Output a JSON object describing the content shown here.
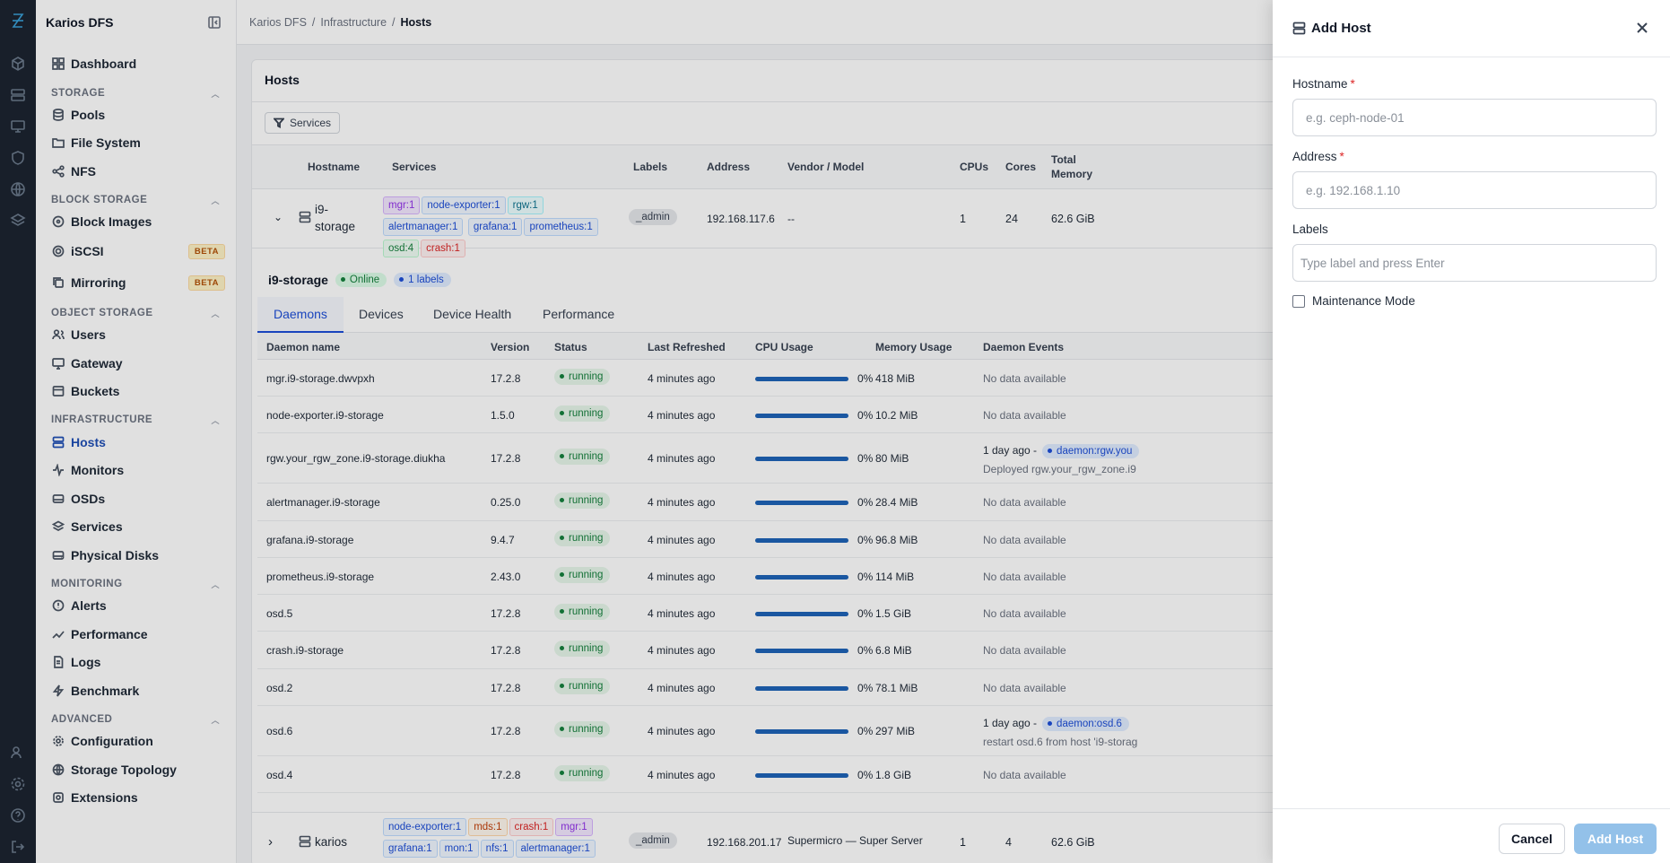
{
  "app": {
    "title": "Kairos DFS"
  },
  "breadcrumb": [
    "Karios DFS",
    "Infrastructure",
    "Hosts"
  ],
  "sidebar": {
    "title": "Karios DFS",
    "dashboard": "Dashboard",
    "sections": {
      "storage": "STORAGE",
      "block": "BLOCK STORAGE",
      "object": "OBJECT STORAGE",
      "infra": "INFRASTRUCTURE",
      "monitoring": "MONITORING",
      "advanced": "ADVANCED"
    },
    "items": {
      "pools": "Pools",
      "filesystem": "File System",
      "nfs": "NFS",
      "blockimages": "Block Images",
      "iscsi": "iSCSI",
      "mirroring": "Mirroring",
      "users": "Users",
      "gateway": "Gateway",
      "buckets": "Buckets",
      "hosts": "Hosts",
      "monitors": "Monitors",
      "osds": "OSDs",
      "services": "Services",
      "physicaldisks": "Physical Disks",
      "alerts": "Alerts",
      "performance": "Performance",
      "logs": "Logs",
      "benchmark": "Benchmark",
      "configuration": "Configuration",
      "topology": "Storage Topology",
      "extensions": "Extensions"
    },
    "beta": "BETA"
  },
  "hosts": {
    "title": "Hosts",
    "filter": "Services",
    "columns": {
      "hostname": "Hostname",
      "services": "Services",
      "labels": "Labels",
      "address": "Address",
      "vendor": "Vendor / Model",
      "cpus": "CPUs",
      "cores": "Cores",
      "memory": "Total Memory"
    },
    "rows": [
      {
        "hostname": "i9-storage",
        "services": [
          "mgr:1",
          "node-exporter:1",
          "rgw:1",
          "alertmanager:1",
          "grafana:1",
          "prometheus:1",
          "osd:4",
          "crash:1"
        ],
        "label": "_admin",
        "address": "192.168.117.6",
        "vendor": "--",
        "cpus": "1",
        "cores": "24",
        "memory": "62.6 GiB"
      },
      {
        "hostname": "karios",
        "services": [
          "node-exporter:1",
          "mds:1",
          "crash:1",
          "mgr:1",
          "grafana:1",
          "mon:1",
          "nfs:1",
          "alertmanager:1"
        ],
        "label": "_admin",
        "address": "192.168.201.17",
        "vendor": "Supermicro — Super Server",
        "cpus": "1",
        "cores": "4",
        "memory": "62.6 GiB"
      }
    ]
  },
  "detail": {
    "name": "i9-storage",
    "status": "Online",
    "labels": "1 labels",
    "tabs": [
      "Daemons",
      "Devices",
      "Device Health",
      "Performance"
    ],
    "columns": {
      "name": "Daemon name",
      "version": "Version",
      "status": "Status",
      "refreshed": "Last Refreshed",
      "cpu": "CPU Usage",
      "memory": "Memory Usage",
      "events": "Daemon Events"
    },
    "daemons": [
      {
        "name": "mgr.i9-storage.dwvpxh",
        "version": "17.2.8",
        "status": "running",
        "refreshed": "4 minutes ago",
        "cpu": "0%",
        "memory": "418 MiB",
        "events": "No data available"
      },
      {
        "name": "node-exporter.i9-storage",
        "version": "1.5.0",
        "status": "running",
        "refreshed": "4 minutes ago",
        "cpu": "0%",
        "memory": "10.2 MiB",
        "events": "No data available"
      },
      {
        "name": "rgw.your_rgw_zone.i9-storage.diukha",
        "version": "17.2.8",
        "status": "running",
        "refreshed": "4 minutes ago",
        "cpu": "0%",
        "memory": "80 MiB",
        "events": "1 day ago -",
        "event_chip": "daemon:rgw.you",
        "event_detail": "Deployed rgw.your_rgw_zone.i9"
      },
      {
        "name": "alertmanager.i9-storage",
        "version": "0.25.0",
        "status": "running",
        "refreshed": "4 minutes ago",
        "cpu": "0%",
        "memory": "28.4 MiB",
        "events": "No data available"
      },
      {
        "name": "grafana.i9-storage",
        "version": "9.4.7",
        "status": "running",
        "refreshed": "4 minutes ago",
        "cpu": "0%",
        "memory": "96.8 MiB",
        "events": "No data available"
      },
      {
        "name": "prometheus.i9-storage",
        "version": "2.43.0",
        "status": "running",
        "refreshed": "4 minutes ago",
        "cpu": "0%",
        "memory": "114 MiB",
        "events": "No data available"
      },
      {
        "name": "osd.5",
        "version": "17.2.8",
        "status": "running",
        "refreshed": "4 minutes ago",
        "cpu": "0%",
        "memory": "1.5 GiB",
        "events": "No data available"
      },
      {
        "name": "crash.i9-storage",
        "version": "17.2.8",
        "status": "running",
        "refreshed": "4 minutes ago",
        "cpu": "0%",
        "memory": "6.8 MiB",
        "events": "No data available"
      },
      {
        "name": "osd.2",
        "version": "17.2.8",
        "status": "running",
        "refreshed": "4 minutes ago",
        "cpu": "0%",
        "memory": "78.1 MiB",
        "events": "No data available"
      },
      {
        "name": "osd.6",
        "version": "17.2.8",
        "status": "running",
        "refreshed": "4 minutes ago",
        "cpu": "0%",
        "memory": "297 MiB",
        "events": "1 day ago -",
        "event_chip": "daemon:osd.6",
        "event_detail": "restart osd.6 from host 'i9-storag"
      },
      {
        "name": "osd.4",
        "version": "17.2.8",
        "status": "running",
        "refreshed": "4 minutes ago",
        "cpu": "0%",
        "memory": "1.8 GiB",
        "events": "No data available"
      }
    ]
  },
  "drawer": {
    "title": "Add Host",
    "hostname_label": "Hostname",
    "hostname_placeholder": "e.g. ceph-node-01",
    "address_label": "Address",
    "address_placeholder": "e.g. 192.168.1.10",
    "labels_label": "Labels",
    "labels_placeholder": "Type label and press Enter",
    "required_mark": "*",
    "maintenance_label": "Maintenance Mode",
    "cancel": "Cancel",
    "submit": "Add Host"
  },
  "colors": {
    "accent": "#1d4ed8",
    "primary_disabled": "#93c1e9",
    "rail": "#1c2430"
  }
}
